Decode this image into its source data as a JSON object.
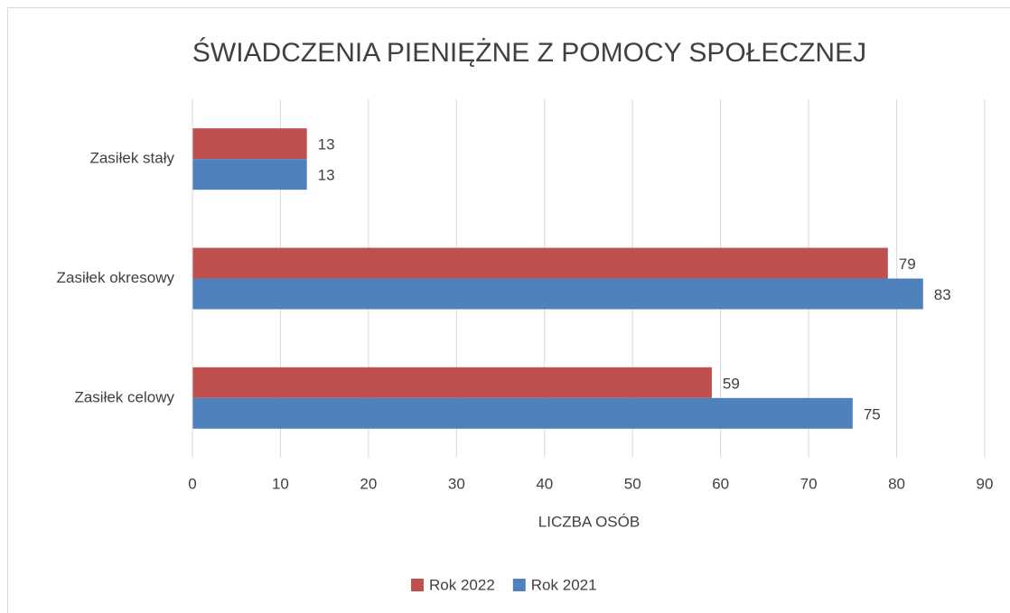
{
  "chart_data": {
    "type": "hbar",
    "title": "ŚWIADCZENIA PIENIĘŻNE Z POMOCY SPOŁECZNEJ",
    "x_label": "LICZBA OSÓB",
    "categories": [
      "Zasiłek stały",
      "Zasiłek okresowy",
      "Zasiłek celowy"
    ],
    "series": [
      {
        "name": "Rok 2022",
        "color": "#c0504d",
        "values": [
          13,
          79,
          59
        ]
      },
      {
        "name": "Rok 2021",
        "color": "#4f81bd",
        "values": [
          13,
          83,
          75
        ]
      }
    ],
    "xlim": [
      0,
      90
    ],
    "xticks": [
      0,
      10,
      20,
      30,
      40,
      50,
      60,
      70,
      80,
      90
    ],
    "grid": true,
    "legend": "bottom"
  }
}
